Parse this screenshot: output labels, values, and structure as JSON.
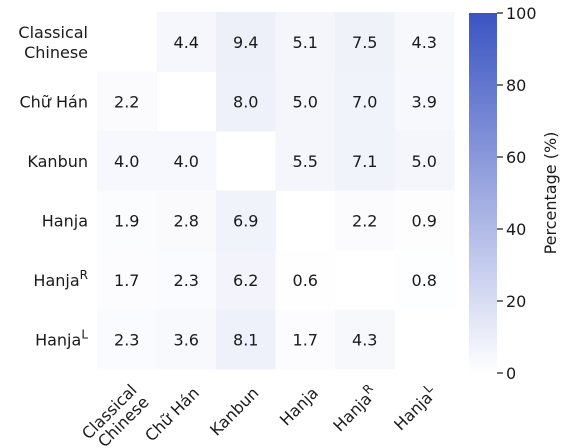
{
  "chart_data": {
    "type": "heatmap",
    "rows": [
      {
        "label": "Classical\nChinese",
        "sup": ""
      },
      {
        "label": "Chữ Hán",
        "sup": ""
      },
      {
        "label": "Kanbun",
        "sup": ""
      },
      {
        "label": "Hanja",
        "sup": ""
      },
      {
        "label": "Hanja",
        "sup": "R"
      },
      {
        "label": "Hanja",
        "sup": "L"
      }
    ],
    "columns": [
      {
        "label": "Classical\nChinese",
        "sup": ""
      },
      {
        "label": "Chữ Hán",
        "sup": ""
      },
      {
        "label": "Kanbun",
        "sup": ""
      },
      {
        "label": "Hanja",
        "sup": ""
      },
      {
        "label": "Hanja",
        "sup": "R"
      },
      {
        "label": "Hanja",
        "sup": "L"
      }
    ],
    "values": [
      [
        null,
        4.4,
        9.4,
        5.1,
        7.5,
        4.3
      ],
      [
        2.2,
        null,
        8.0,
        5.0,
        7.0,
        3.9
      ],
      [
        4.0,
        4.0,
        null,
        5.5,
        7.1,
        5.0
      ],
      [
        1.9,
        2.8,
        6.9,
        null,
        2.2,
        0.9
      ],
      [
        1.7,
        2.3,
        6.2,
        0.6,
        null,
        0.8
      ],
      [
        2.3,
        3.6,
        8.1,
        1.7,
        4.3,
        null
      ]
    ],
    "value_format": "one-decimal",
    "colorbar": {
      "label": "Percentage (%)",
      "min": 0,
      "max": 100,
      "ticks": [
        0,
        20,
        40,
        60,
        80,
        100
      ],
      "color_low": "#ffffff",
      "color_high": "#3b54c2"
    }
  }
}
